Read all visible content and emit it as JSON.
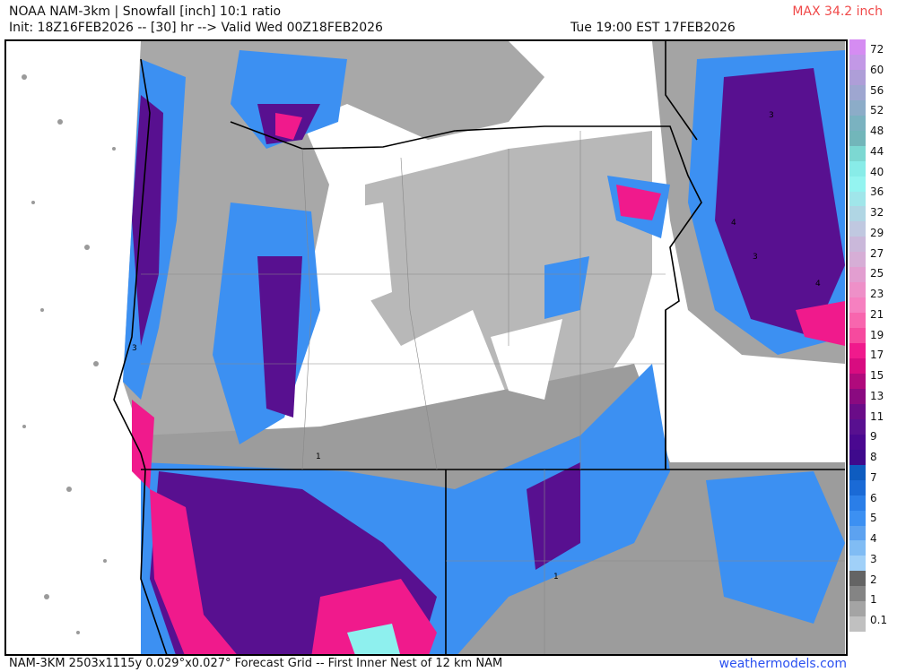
{
  "header": {
    "title": "NOAA NAM-3km | Snowfall [inch] 10:1 ratio",
    "init": "Init: 18Z16FEB2026 -- [30] hr --> Valid Wed 00Z18FEB2026",
    "valid_local": "Tue 19:00 EST 17FEB2026",
    "max": "MAX 34.2 inch",
    "max_color": "#f04848"
  },
  "footer": {
    "grid_info": "NAM-3KM 2503x1115y 0.029°x0.027° Forecast Grid -- First Inner Nest of 12 km NAM",
    "site": "weathermodels.com"
  },
  "map": {
    "region": "Oregon / Northern California / Idaho",
    "contour_labels": [
      "3",
      "3",
      "4",
      "4",
      "3",
      "1",
      "1"
    ]
  },
  "colorbar": {
    "labels": [
      "72",
      "60",
      "56",
      "52",
      "48",
      "44",
      "40",
      "36",
      "32",
      "29",
      "27",
      "25",
      "23",
      "21",
      "19",
      "17",
      "15",
      "13",
      "11",
      "9",
      "8",
      "7",
      "6",
      "5",
      "4",
      "3",
      "2",
      "1",
      "0.1"
    ],
    "colors": [
      "#d58cf2",
      "#c298e6",
      "#ae9ed8",
      "#9ea6d0",
      "#8cacc8",
      "#7ab2c0",
      "#72b6ba",
      "#7cd8d2",
      "#88ece8",
      "#94f4f0",
      "#a0e6ea",
      "#b0d6e4",
      "#c0c8e0",
      "#cab8da",
      "#d6aed6",
      "#e29ed0",
      "#ee90c8",
      "#f680c0",
      "#f866ae",
      "#f64a9e",
      "#f01a8c",
      "#d80c80",
      "#b00a7c",
      "#8a0a80",
      "#6a0c88",
      "#581090",
      "#4a0890",
      "#3e0a8c",
      "#0e5cc0",
      "#1a6ad6",
      "#2a7ee8",
      "#3c90f2",
      "#5ca2f0",
      "#80bcf4",
      "#a0d0f8",
      "#646464",
      "#848484",
      "#a4a4a4",
      "#c0c0c0"
    ]
  }
}
